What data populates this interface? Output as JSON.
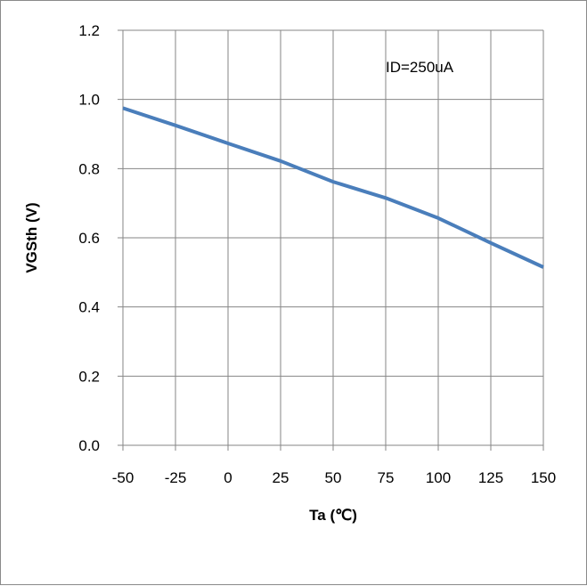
{
  "chart_data": {
    "type": "line",
    "title": "",
    "xlabel": "Ta (℃)",
    "ylabel": "VGSth (V)",
    "annotation": "ID=250uA",
    "xlim": [
      -50,
      150
    ],
    "ylim": [
      0.0,
      1.2
    ],
    "x_ticks": [
      "-50",
      "-25",
      "0",
      "25",
      "50",
      "75",
      "100",
      "125",
      "150"
    ],
    "y_ticks": [
      "0.0",
      "0.2",
      "0.4",
      "0.6",
      "0.8",
      "1.0",
      "1.2"
    ],
    "grid": true,
    "series": [
      {
        "x": [
          -50,
          -25,
          0,
          25,
          50,
          75,
          100,
          125,
          150
        ],
        "y": [
          0.975,
          0.925,
          0.873,
          0.822,
          0.762,
          0.715,
          0.657,
          0.585,
          0.515
        ],
        "color": "#4a7ebb"
      }
    ]
  }
}
